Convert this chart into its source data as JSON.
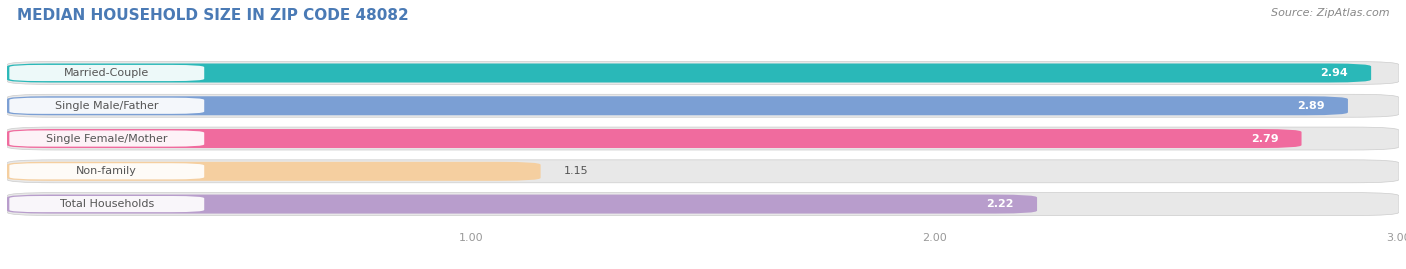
{
  "title": "MEDIAN HOUSEHOLD SIZE IN ZIP CODE 48082",
  "source": "Source: ZipAtlas.com",
  "categories": [
    "Married-Couple",
    "Single Male/Father",
    "Single Female/Mother",
    "Non-family",
    "Total Households"
  ],
  "values": [
    2.94,
    2.89,
    2.79,
    1.15,
    2.22
  ],
  "bar_colors": [
    "#2ab8b8",
    "#7b9fd4",
    "#f06b9e",
    "#f5cfa0",
    "#b89dcc"
  ],
  "label_colors": [
    "white",
    "white",
    "white",
    "black",
    "white"
  ],
  "xmin": 0.0,
  "xmax": 3.0,
  "xticks": [
    1.0,
    2.0,
    3.0
  ],
  "background_color": "#ffffff",
  "bar_bg_color": "#e8e8e8",
  "title_color": "#4a7ab5",
  "source_color": "#888888",
  "title_fontsize": 11,
  "source_fontsize": 8,
  "label_fontsize": 8,
  "value_fontsize": 8
}
